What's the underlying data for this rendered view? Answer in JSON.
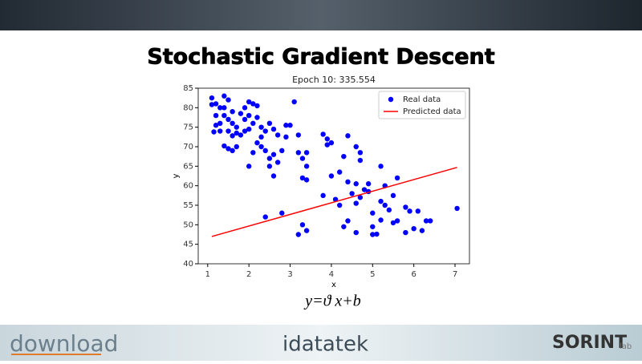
{
  "header": {
    "title": "Stochastic Gradient Descent"
  },
  "chart_data": {
    "type": "scatter",
    "title": "Epoch 10: 335.554",
    "x_label": "x",
    "y_label": "y",
    "xlim": [
      0.77,
      7.35
    ],
    "ylim": [
      40,
      85
    ],
    "xticks": [
      1,
      2,
      3,
      4,
      5,
      6,
      7
    ],
    "yticks": [
      40,
      45,
      50,
      55,
      60,
      65,
      70,
      75,
      80,
      85
    ],
    "legend": "upper right",
    "series": [
      {
        "name": "Real data",
        "color": "#0000ff",
        "mode": "markers",
        "x": [
          1.1,
          1.2,
          1.1,
          1.3,
          1.4,
          1.5,
          1.4,
          1.2,
          1.3,
          1.15,
          1.4,
          1.5,
          1.6,
          1.5,
          1.7,
          1.6,
          1.4,
          1.5,
          1.6,
          1.7,
          1.8,
          1.9,
          2.0,
          2.1,
          2.2,
          2.0,
          2.1,
          2.2,
          2.3,
          2.4,
          2.5,
          2.6,
          2.7,
          2.3,
          2.2,
          2.1,
          2.0,
          2.3,
          2.4,
          2.5,
          2.6,
          2.7,
          2.8,
          2.9,
          3.0,
          2.9,
          3.1,
          3.2,
          3.2,
          3.3,
          3.4,
          3.4,
          3.3,
          3.4,
          2.5,
          2.6,
          2.4,
          2.8,
          1.9,
          1.8,
          2.0,
          1.7,
          1.9,
          1.6,
          1.3,
          1.2,
          3.8,
          3.9,
          4.0,
          3.9,
          4.4,
          4.6,
          4.7,
          4.3,
          4.7,
          4.0,
          4.2,
          4.4,
          4.6,
          4.8,
          4.9,
          4.5,
          4.7,
          4.9,
          5.2,
          5.3,
          5.6,
          5.5,
          5.2,
          5.3,
          5.4,
          5.0,
          4.6,
          3.8,
          4.1,
          4.2,
          4.4,
          4.3,
          4.6,
          5.0,
          5.0,
          5.1,
          5.5,
          5.6,
          5.8,
          5.9,
          6.0,
          6.1,
          6.2,
          6.3,
          6.4,
          5.8,
          7.05,
          3.2,
          3.3,
          3.4,
          5.2
        ],
        "values": [
          82.5,
          81,
          80.8,
          80,
          83,
          82,
          80,
          75.5,
          74,
          73.8,
          78,
          77,
          76,
          74,
          73.5,
          72.8,
          70.2,
          69.5,
          69,
          70,
          78.5,
          80,
          81.5,
          81,
          80.5,
          78,
          76,
          77.5,
          75,
          74,
          76,
          74.5,
          73,
          72.5,
          71,
          68.5,
          65,
          70,
          69,
          67,
          68,
          66,
          69,
          72.5,
          75.5,
          75.5,
          81.5,
          73,
          68.5,
          67,
          68.5,
          65,
          62,
          61.5,
          65,
          62.5,
          52,
          53,
          74,
          73,
          74.5,
          75,
          77,
          79,
          76,
          78,
          73.2,
          72,
          71,
          70.5,
          72.8,
          70,
          68.5,
          67.5,
          66.5,
          62.5,
          63.5,
          61,
          60.5,
          59,
          58.5,
          58,
          57,
          60.5,
          65,
          60,
          62,
          57.5,
          56,
          55,
          53.8,
          53,
          55.5,
          57.5,
          56.5,
          55,
          51,
          49.5,
          48,
          49.5,
          47.5,
          47.6,
          50.5,
          51,
          54.5,
          53.5,
          49,
          53.5,
          48.5,
          51,
          51,
          48,
          54.2,
          47.5,
          50,
          48.5,
          51.2
        ]
      },
      {
        "name": "Predicted data",
        "color": "#ff0000",
        "mode": "line",
        "x": [
          1.1,
          7.05
        ],
        "values": [
          47,
          64.7
        ]
      }
    ]
  },
  "formula": "y=ϑ x+b",
  "footer": {
    "left": "download",
    "center": "idatatek",
    "right": "SORINT",
    "right_suffix": "lab"
  }
}
